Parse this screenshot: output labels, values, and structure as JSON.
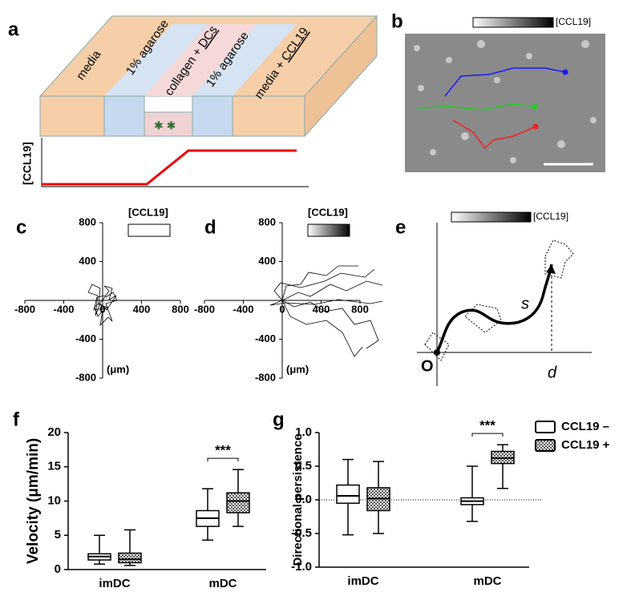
{
  "panel_a": {
    "label": "a",
    "media": "media",
    "agarose_1": "1% agarose",
    "collagen": "collagen + ",
    "dcs": "DCs",
    "agarose_2": "1% agarose",
    "media_ccl": "media + ",
    "ccl19": "CCL19",
    "y_label": "[CCL19]"
  },
  "panel_b": {
    "label": "b",
    "gradient_label": "[CCL19]"
  },
  "panel_e": {
    "label": "e",
    "gradient_label": "[CCL19]",
    "s": "s",
    "d": "d",
    "origin": "O"
  },
  "chart_data": [
    {
      "type": "trajectory",
      "label": "c",
      "xlim": [
        -800,
        800
      ],
      "ylim": [
        -800,
        800
      ],
      "xticks": [
        -800,
        -400,
        0,
        400,
        800
      ],
      "yticks": [
        -800,
        -400,
        400,
        800
      ],
      "unit_label": "(μm)",
      "legend_label": "[CCL19]",
      "legend_style": "outline"
    },
    {
      "type": "trajectory",
      "label": "d",
      "xlim": [
        -800,
        800
      ],
      "ylim": [
        -800,
        800
      ],
      "xticks": [
        -800,
        -400,
        0,
        400,
        800
      ],
      "yticks": [
        -800,
        -400,
        400,
        800
      ],
      "unit_label": "(μm)",
      "legend_label": "[CCL19]",
      "legend_style": "gradient"
    },
    {
      "type": "boxplot",
      "label": "f",
      "y_label": "Velocity (μm/min)",
      "categories": [
        "imDC",
        "mDC"
      ],
      "ylim": [
        0,
        20
      ],
      "yticks": [
        0,
        5,
        10,
        15,
        20
      ],
      "annotation": "***",
      "series": [
        {
          "name": "CCL19 –",
          "color": "#ffffff",
          "pattern": "none",
          "boxes": [
            {
              "min": 0.8,
              "q1": 1.4,
              "median": 1.9,
              "q3": 2.3,
              "max": 5.0
            },
            {
              "min": 4.3,
              "q1": 6.3,
              "median": 7.5,
              "q3": 8.6,
              "max": 11.8
            }
          ]
        },
        {
          "name": "CCL19 +",
          "color": "#ffffff",
          "pattern": "checker",
          "boxes": [
            {
              "min": 0.6,
              "q1": 1.0,
              "median": 1.5,
              "q3": 2.4,
              "max": 5.8
            },
            {
              "min": 6.3,
              "q1": 8.3,
              "median": 10.0,
              "q3": 11.2,
              "max": 14.6
            }
          ]
        }
      ]
    },
    {
      "type": "boxplot",
      "label": "g",
      "y_label": "Directional persistence",
      "categories": [
        "imDC",
        "mDC"
      ],
      "ylim": [
        -1,
        1
      ],
      "yticks": [
        {
          "value": -1,
          "label": "-1.0"
        },
        -0.5,
        {
          "value": 0,
          "label": "0.0"
        },
        0.5,
        {
          "value": 1,
          "label": "1.0"
        }
      ],
      "annotation": "***",
      "reference_line": 0,
      "legend": "right",
      "series": [
        {
          "name": "CCL19 –",
          "color": "#ffffff",
          "pattern": "none",
          "boxes": [
            {
              "min": -0.52,
              "q1": -0.05,
              "median": 0.06,
              "q3": 0.22,
              "max": 0.6
            },
            {
              "min": -0.32,
              "q1": -0.07,
              "median": -0.02,
              "q3": 0.03,
              "max": 0.5
            }
          ]
        },
        {
          "name": "CCL19 +",
          "color": "#ffffff",
          "pattern": "checker",
          "boxes": [
            {
              "min": -0.5,
              "q1": -0.16,
              "median": 0.02,
              "q3": 0.18,
              "max": 0.57
            },
            {
              "min": 0.17,
              "q1": 0.54,
              "median": 0.62,
              "q3": 0.72,
              "max": 0.82
            }
          ]
        }
      ]
    }
  ]
}
